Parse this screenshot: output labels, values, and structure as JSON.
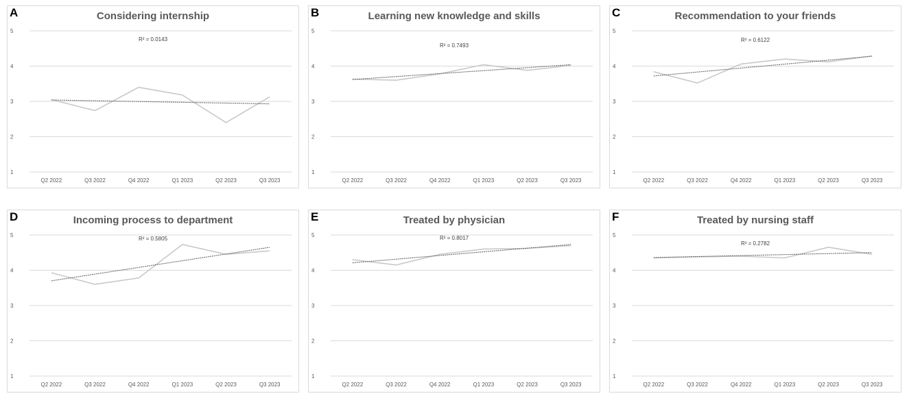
{
  "chart_data": [
    {
      "type": "line",
      "panel_label": "A",
      "title": "Considering internship",
      "annotation": "R² = 0.0143",
      "categories": [
        "Q2 2022",
        "Q3 2022",
        "Q4 2022",
        "Q1 2023",
        "Q2 2023",
        "Q3 2023"
      ],
      "ylim": [
        1,
        5
      ],
      "yticks": [
        1,
        2,
        3,
        4,
        5
      ],
      "grid": true,
      "series": [
        {
          "values": [
            3.05,
            2.74,
            3.4,
            3.18,
            2.4,
            3.13
          ],
          "color": "#c8c8c8"
        }
      ],
      "trendline": {
        "start": 3.04,
        "end": 2.93,
        "color": "#666666",
        "style": "dashed"
      }
    },
    {
      "type": "line",
      "panel_label": "B",
      "title": "Learning new knowledge and skills",
      "annotation": "R² = 0.7493",
      "categories": [
        "Q2 2022",
        "Q3 2022",
        "Q4 2022",
        "Q1 2023",
        "Q2 2023",
        "Q3 2023"
      ],
      "ylim": [
        1,
        5
      ],
      "yticks": [
        1,
        2,
        3,
        4,
        5
      ],
      "grid": true,
      "series": [
        {
          "values": [
            3.63,
            3.6,
            3.78,
            4.04,
            3.88,
            4.02
          ],
          "color": "#c8c8c8"
        }
      ],
      "trendline": {
        "start": 3.62,
        "end": 4.04,
        "color": "#666666",
        "style": "dashed"
      }
    },
    {
      "type": "line",
      "panel_label": "C",
      "title": "Recommendation to your friends",
      "annotation": "R² = 0.6122",
      "categories": [
        "Q2 2022",
        "Q3 2022",
        "Q4 2022",
        "Q1 2023",
        "Q2 2023",
        "Q3 2023"
      ],
      "ylim": [
        1,
        5
      ],
      "yticks": [
        1,
        2,
        3,
        4,
        5
      ],
      "grid": true,
      "series": [
        {
          "values": [
            3.84,
            3.52,
            4.06,
            4.2,
            4.12,
            4.29
          ],
          "color": "#c8c8c8"
        }
      ],
      "trendline": {
        "start": 3.72,
        "end": 4.28,
        "color": "#666666",
        "style": "dashed"
      }
    },
    {
      "type": "line",
      "panel_label": "D",
      "title": "Incoming process to department",
      "annotation": "R² = 0.5805",
      "categories": [
        "Q2 2022",
        "Q3 2022",
        "Q4 2022",
        "Q1 2023",
        "Q2 2023",
        "Q3 2023"
      ],
      "ylim": [
        1,
        5
      ],
      "yticks": [
        1,
        2,
        3,
        4,
        5
      ],
      "grid": true,
      "series": [
        {
          "values": [
            3.93,
            3.6,
            3.78,
            4.73,
            4.45,
            4.55
          ],
          "color": "#c8c8c8"
        }
      ],
      "trendline": {
        "start": 3.7,
        "end": 4.65,
        "color": "#666666",
        "style": "dashed"
      }
    },
    {
      "type": "line",
      "panel_label": "E",
      "title": "Treated by physician",
      "annotation": "R² = 0.8017",
      "categories": [
        "Q2 2022",
        "Q3 2022",
        "Q4 2022",
        "Q1 2023",
        "Q2 2023",
        "Q3 2023"
      ],
      "ylim": [
        1,
        5
      ],
      "yticks": [
        1,
        2,
        3,
        4,
        5
      ],
      "grid": true,
      "series": [
        {
          "values": [
            4.3,
            4.15,
            4.45,
            4.6,
            4.62,
            4.7
          ],
          "color": "#c8c8c8"
        }
      ],
      "trendline": {
        "start": 4.21,
        "end": 4.73,
        "color": "#666666",
        "style": "dashed"
      }
    },
    {
      "type": "line",
      "panel_label": "F",
      "title": "Treated by nursing staff",
      "annotation": "R² = 0.2782",
      "categories": [
        "Q2 2022",
        "Q3 2022",
        "Q4 2022",
        "Q1 2023",
        "Q2 2023",
        "Q3 2023"
      ],
      "ylim": [
        1,
        5
      ],
      "yticks": [
        1,
        2,
        3,
        4,
        5
      ],
      "grid": true,
      "series": [
        {
          "values": [
            4.35,
            4.38,
            4.4,
            4.35,
            4.65,
            4.45
          ],
          "color": "#c8c8c8"
        }
      ],
      "trendline": {
        "start": 4.36,
        "end": 4.5,
        "color": "#666666",
        "style": "dashed"
      }
    }
  ]
}
